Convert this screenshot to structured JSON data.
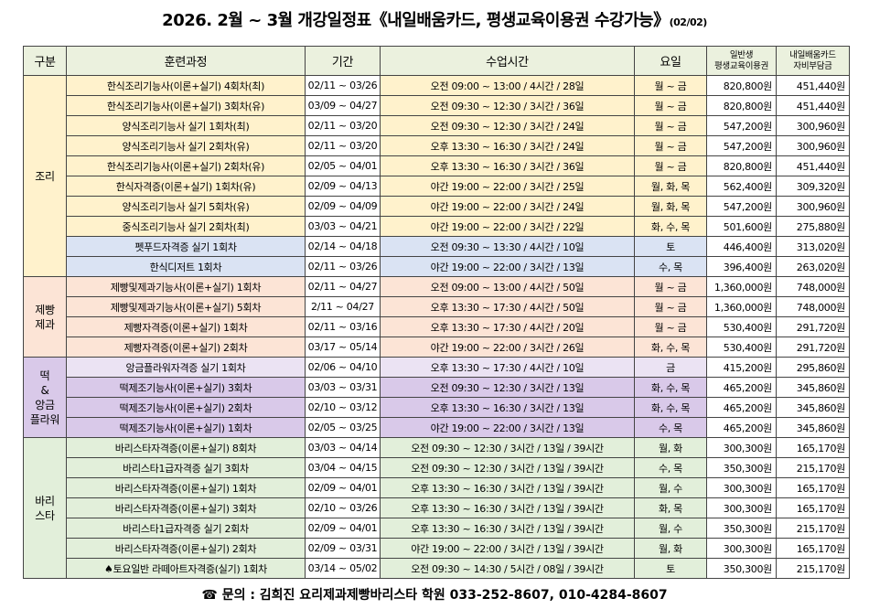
{
  "title": {
    "main": "2026. 2월 ~ 3월 개강일정표《내일배움카드, 평생교육이용권 수강가능》",
    "date": "(02/02)"
  },
  "table": {
    "header": [
      "구분",
      "훈련과정",
      "기간",
      "수업시간",
      "요일",
      [
        "일반생",
        "평생교육이용권"
      ],
      [
        "내일배움카드",
        "자비부담금"
      ]
    ],
    "groups": [
      {
        "label": [
          "조리"
        ],
        "color": "#fff2cc",
        "rows": [
          [
            "한식조리기능사(이론+실기) 4회차(최)",
            "02/11 ~ 03/26",
            "오전 09:00 ~ 13:00 / 4시간 / 28일",
            "월 ~ 금",
            "820,800원",
            "451,440원"
          ],
          [
            "한식조리기능사(이론+실기) 3회차(유)",
            "03/09 ~ 04/27",
            "오전 09:30 ~ 12:30 / 3시간 / 36일",
            "월 ~ 금",
            "820,800원",
            "451,440원"
          ],
          [
            "양식조리기능사 실기 1회차(최)",
            "02/11 ~ 03/20",
            "오전 09:30 ~ 12:30 / 3시간 / 24일",
            "월 ~ 금",
            "547,200원",
            "300,960원"
          ],
          [
            "양식조리기능사 실기 2회차(유)",
            "02/11 ~ 03/20",
            "오후 13:30 ~ 16:30 / 3시간 / 24일",
            "월 ~ 금",
            "547,200원",
            "300,960원"
          ],
          [
            "한식조리기능사(이론+실기) 2회차(유)",
            "02/05 ~ 04/01",
            "오후 13:30 ~ 16:30 / 3시간 / 36일",
            "월 ~ 금",
            "820,800원",
            "451,440원"
          ],
          [
            "한식자격증(이론+실기) 1회차(유)",
            "02/09 ~ 04/13",
            "야간 19:00 ~ 22:00 / 3시간 / 25일",
            "월, 화, 목",
            "562,400원",
            "309,320원"
          ],
          [
            "양식조리기능사 실기 5회차(유)",
            "02/09 ~ 04/09",
            "야간 19:00 ~ 22:00 / 3시간 / 24일",
            "월, 화, 목",
            "547,200원",
            "300,960원"
          ],
          [
            "중식조리기능사 실기 2회차(최)",
            "03/03 ~ 04/21",
            "야간 19:00 ~ 22:00 / 3시간 / 22일",
            "화, 수, 목",
            "501,600원",
            "275,880원"
          ],
          [
            "펫푸드자격증 실기 1회차",
            "02/14 ~ 04/18",
            "오전 09:30 ~ 13:30 / 4시간 / 10일",
            "토",
            "446,400원",
            "313,020원"
          ],
          [
            "한식디저트 1회차",
            "02/11 ~ 03/26",
            "야간 19:00 ~ 22:00 / 3시간 / 13일",
            "수, 목",
            "396,400원",
            "263,020원"
          ]
        ],
        "row_colors": [
          null,
          null,
          null,
          null,
          null,
          null,
          null,
          null,
          "#dae3f3",
          "#dae3f3"
        ]
      },
      {
        "label": [
          "제빵",
          "제과"
        ],
        "color": "#fce4d6",
        "rows": [
          [
            "제빵및제과기능사(이론+실기) 1회차",
            "02/11 ~ 04/27",
            "오전 09:00 ~ 13:00 / 4시간 / 50일",
            "월 ~ 금",
            "1,360,000원",
            "748,000원"
          ],
          [
            "제빵및제과기능사(이론+실기) 5회차",
            "2/11 ~ 04/27",
            "오후 13:30 ~ 17:30 / 4시간 / 50일",
            "월 ~ 금",
            "1,360,000원",
            "748,000원"
          ],
          [
            "제빵자격증(이론+실기) 1회차",
            "02/11 ~ 03/16",
            "오후 13:30 ~ 17:30 / 4시간 / 20일",
            "월 ~ 금",
            "530,400원",
            "291,720원"
          ],
          [
            "제빵자격증(이론+실기) 2회차",
            "03/17 ~ 05/14",
            "야간 19:00 ~ 22:00 / 3시간 / 26일",
            "화, 수, 목",
            "530,400원",
            "291,720원"
          ]
        ]
      },
      {
        "label": [
          "떡",
          "&",
          "앙금",
          "플라워"
        ],
        "color": "#d9c9e9",
        "rows": [
          [
            "앙금플라워자격증 실기 1회차",
            "02/06 ~ 04/10",
            "오후 13:30 ~ 17:30 / 4시간 / 10일",
            "금",
            "415,200원",
            "295,860원"
          ],
          [
            "떡제조기능사(이론+실기) 3회차",
            "03/03 ~ 03/31",
            "오전 09:30 ~ 12:30 / 3시간 / 13일",
            "화, 수, 목",
            "465,200원",
            "345,860원"
          ],
          [
            "떡제조기능사(이론+실기) 2회차",
            "02/10 ~ 03/12",
            "오후 13:30 ~ 16:30 / 3시간 / 13일",
            "화, 수, 목",
            "465,200원",
            "345,860원"
          ],
          [
            "떡제조기능사(이론+실기) 1회차",
            "02/05 ~ 03/25",
            "야간 19:00 ~ 22:00 / 3시간 / 13일",
            "수, 목",
            "465,200원",
            "345,860원"
          ]
        ],
        "row_colors": [
          "#ebe3f3",
          null,
          null,
          null
        ]
      },
      {
        "label": [
          "바리",
          "스타"
        ],
        "color": "#e2efda",
        "rows": [
          [
            "바리스타자격증(이론+실기) 8회차",
            "03/03 ~ 04/14",
            "오전 09:30 ~ 12:30 / 3시간 / 13일 / 39시간",
            "월, 화",
            "300,300원",
            "165,170원"
          ],
          [
            "바리스타1급자격증 실기 3회차",
            "03/04 ~ 04/15",
            "오전 09:30 ~ 12:30 / 3시간 / 13일 / 39시간",
            "수, 목",
            "350,300원",
            "215,170원"
          ],
          [
            "바리스타자격증(이론+실기) 1회차",
            "02/09 ~ 04/01",
            "오후 13:30 ~ 16:30 / 3시간 / 13일 / 39시간",
            "월, 수",
            "300,300원",
            "165,170원"
          ],
          [
            "바리스타자격증(이론+실기) 3회차",
            "02/10 ~ 03/26",
            "오후 13:30 ~ 16:30 / 3시간 / 13일 / 39시간",
            "화, 목",
            "300,300원",
            "165,170원"
          ],
          [
            "바리스타1급자격증 실기 2회차",
            "02/09 ~ 04/01",
            "오후 13:30 ~ 16:30 / 3시간 / 13일 / 39시간",
            "월, 수",
            "350,300원",
            "215,170원"
          ],
          [
            "바리스타자격증(이론+실기) 2회차",
            "02/09 ~ 03/31",
            "야간 19:00 ~ 22:00 / 3시간 / 13일 / 39시간",
            "월, 화",
            "300,300원",
            "165,170원"
          ],
          [
            "♠토요일반 라떼아트자격증(실기) 1회차",
            "03/14 ~ 05/02",
            "오전 09:30 ~ 14:30 / 5시간 / 08일 / 39시간",
            "토",
            "350,300원",
            "215,170원"
          ]
        ]
      }
    ]
  },
  "footer": "☎ 문의 : 김희진 요리제과제빵바리스타 학원 033-252-8607, 010-4284-8607"
}
